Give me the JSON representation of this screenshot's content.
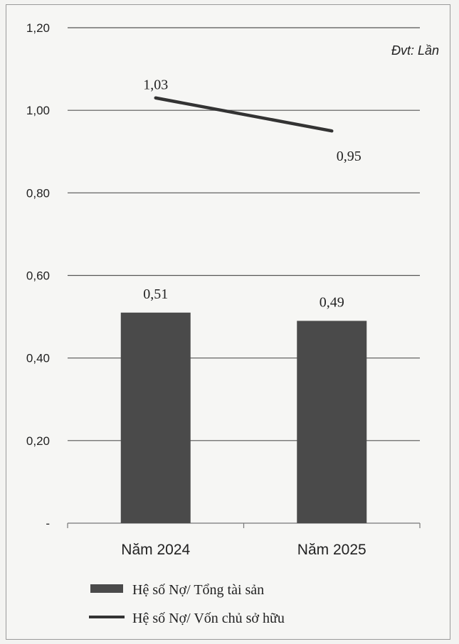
{
  "chart_data": {
    "type": "bar",
    "unit_label": "Đvt: Lần",
    "categories": [
      "Năm 2024",
      "Năm 2025"
    ],
    "ylim": [
      0,
      1.2
    ],
    "yticks": [
      "-",
      "0,20",
      "0,40",
      "0,60",
      "0,80",
      "1,00",
      "1,20"
    ],
    "grid": true,
    "legend_position": "bottom",
    "series": [
      {
        "name": "Hệ số Nợ/ Tổng tài sản",
        "kind": "bar",
        "values": [
          0.51,
          0.49
        ],
        "labels": [
          "0,51",
          "0,49"
        ],
        "color": "#4a4a4a"
      },
      {
        "name": "Hệ số Nợ/ Vốn chủ sở hữu",
        "kind": "line",
        "values": [
          1.03,
          0.95
        ],
        "labels": [
          "1,03",
          "0,95"
        ],
        "color": "#333333"
      }
    ]
  }
}
